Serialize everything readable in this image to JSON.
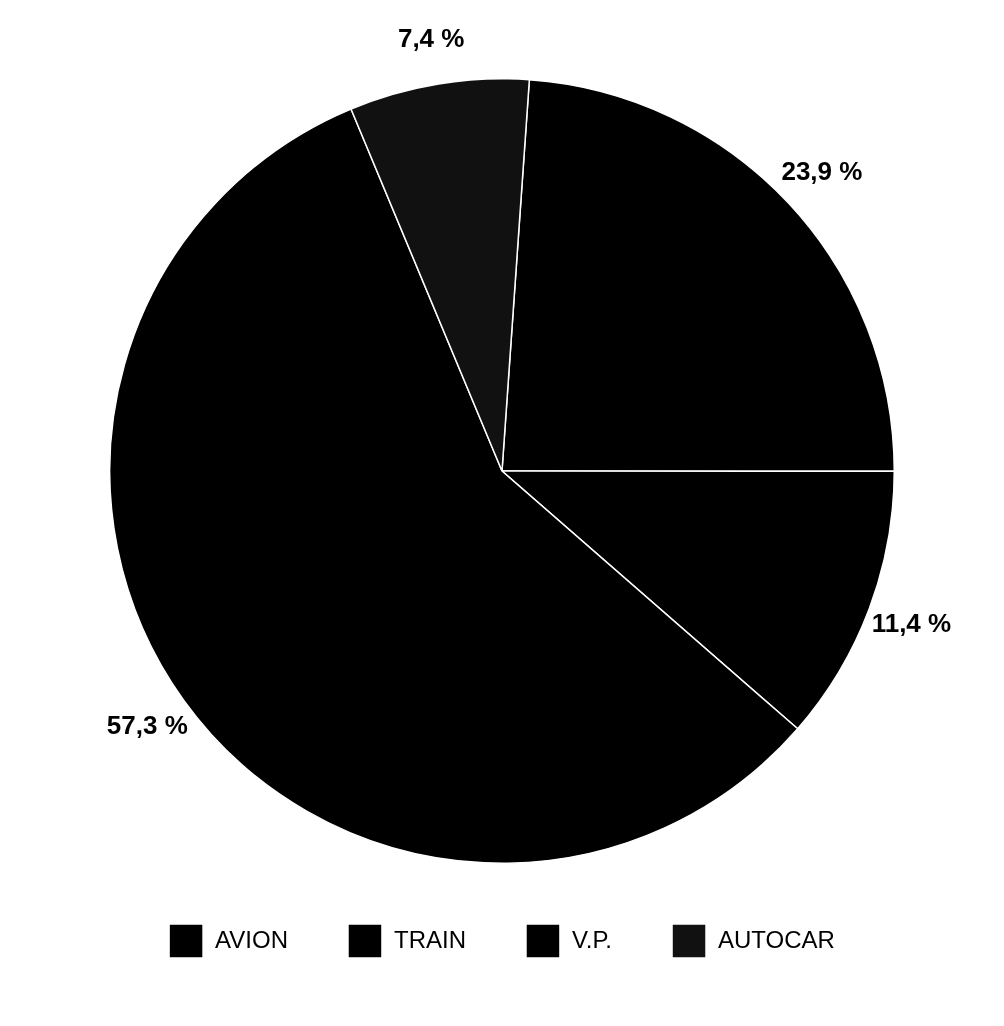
{
  "chart_data": {
    "type": "pie",
    "categories": [
      "AVION",
      "TRAIN",
      "V.P.",
      "AUTOCAR"
    ],
    "values": [
      23.9,
      11.4,
      57.3,
      7.4
    ],
    "colors": [
      "#000000",
      "#000000",
      "#000000",
      "#111111"
    ],
    "value_labels": [
      "23,9 %",
      "11,4 %",
      "57,3 %",
      "7,4 %"
    ],
    "legend": "bottom"
  }
}
